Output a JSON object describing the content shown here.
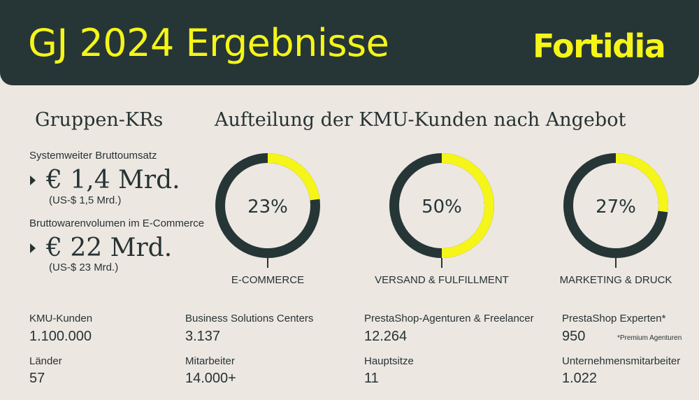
{
  "header": {
    "title": "GJ 2024 Ergebnisse",
    "logo": "Fortidia",
    "title_color": "#f5f519",
    "background": "#263636"
  },
  "kpis": {
    "heading": "Gruppen-KRs",
    "items": [
      {
        "label": "Systemweiter Bruttoumsatz",
        "value": "€ 1,4 Mrd.",
        "sub": "(US-$ 1,5 Mrd.)"
      },
      {
        "label": "Bruttowarenvolumen im E-Commerce",
        "value": "€ 22 Mrd.",
        "sub": "(US-$ 23 Mrd.)"
      }
    ]
  },
  "breakdown": {
    "heading": "Aufteilung der KMU-Kunden nach Angebot"
  },
  "chart_data": {
    "type": "pie",
    "title": "Aufteilung der KMU-Kunden nach Angebot",
    "categories": [
      "E-COMMERCE",
      "VERSAND & FULFILLMENT",
      "MARKETING & DRUCK"
    ],
    "values": [
      23,
      50,
      27
    ],
    "value_labels": [
      "23%",
      "50%",
      "27%"
    ],
    "highlight_color": "#f5f519",
    "base_color": "#263636"
  },
  "stats": [
    {
      "label": "KMU-Kunden",
      "value": "1.100.000"
    },
    {
      "label": "Business Solutions Centers",
      "value": "3.137"
    },
    {
      "label": "PrestaShop-Agenturen & Freelancer",
      "value": "12.264"
    },
    {
      "label": "PrestaShop Experten*",
      "value": "950"
    },
    {
      "label": "Länder",
      "value": "57"
    },
    {
      "label": "Mitarbeiter",
      "value": "14.000+"
    },
    {
      "label": "Hauptsitze",
      "value": "11"
    },
    {
      "label": "Unternehmensmitarbeiter",
      "value": "1.022"
    }
  ],
  "footnote": "*Premium Agenturen"
}
